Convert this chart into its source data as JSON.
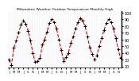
{
  "title": "Milwaukee Weather Outdoor Temperature Monthly High",
  "line_color": "#dd0000",
  "marker_color": "#000000",
  "line_style": "--",
  "marker": "+",
  "background_color": "#ffffff",
  "plot_bg": "#ffffff",
  "grid_color": "#999999",
  "ylim": [
    18,
    102
  ],
  "ytick_vals": [
    20,
    30,
    40,
    50,
    60,
    70,
    80,
    90,
    100
  ],
  "ytick_labels": [
    "20",
    "30",
    "40",
    "50",
    "60",
    "70",
    "80",
    "90",
    "100"
  ],
  "values": [
    30,
    22,
    48,
    58,
    70,
    82,
    88,
    83,
    73,
    58,
    40,
    26,
    28,
    32,
    52,
    60,
    72,
    84,
    90,
    86,
    76,
    60,
    44,
    28,
    34,
    40,
    55,
    64,
    76,
    86,
    92,
    88,
    80,
    65,
    48,
    38,
    30,
    36,
    50,
    62,
    74,
    84,
    90,
    86,
    76,
    62,
    45,
    32
  ],
  "num_points": 48,
  "xtick_step": 2,
  "ytick_fontsize": 3.5,
  "xtick_fontsize": 2.8,
  "title_fontsize": 3.2,
  "linewidth": 0.8,
  "markersize": 3.0
}
